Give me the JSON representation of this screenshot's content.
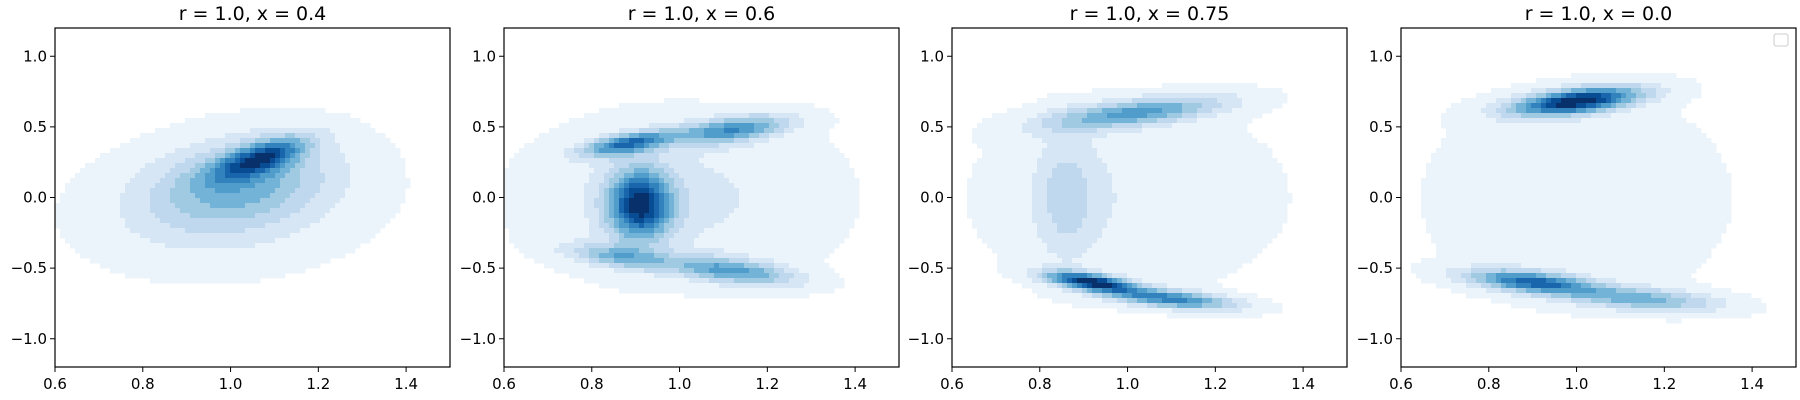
{
  "chart_data": [
    {
      "type": "heatmap",
      "subtype": "kde-contour",
      "title": "r = 1.0, x = 0.4",
      "xlabel": "",
      "ylabel": "",
      "xlim": [
        0.6,
        1.5
      ],
      "ylim": [
        -1.2,
        1.2
      ],
      "xticks": [
        "0.6",
        "0.8",
        "1.0",
        "1.2",
        "1.4"
      ],
      "yticks": [
        "−1.0",
        "−0.5",
        "0.0",
        "0.5",
        "1.0"
      ],
      "xtick_values": [
        0.6,
        0.8,
        1.0,
        1.2,
        1.4
      ],
      "ytick_values": [
        -1.0,
        -0.5,
        0.0,
        0.5,
        1.0
      ],
      "colormap": "Blues",
      "levels": 10,
      "grid": false,
      "legend": false,
      "density_components": [
        {
          "x": 1.07,
          "y": 0.28,
          "sx": 0.07,
          "sy": 0.1,
          "rho": 0.65,
          "w": 1.0
        },
        {
          "x": 1.02,
          "y": 0.1,
          "sx": 0.14,
          "sy": 0.22,
          "rho": 0.3,
          "w": 0.55
        },
        {
          "x": 1.0,
          "y": -0.05,
          "sx": 0.22,
          "sy": 0.32,
          "rho": 0.15,
          "w": 0.25
        }
      ]
    },
    {
      "type": "heatmap",
      "subtype": "kde-contour",
      "title": "r = 1.0, x = 0.6",
      "xlabel": "",
      "ylabel": "",
      "xlim": [
        0.6,
        1.5
      ],
      "ylim": [
        -1.2,
        1.2
      ],
      "xticks": [
        "0.6",
        "0.8",
        "1.0",
        "1.2",
        "1.4"
      ],
      "yticks": [
        "−1.0",
        "−0.5",
        "0.0",
        "0.5",
        "1.0"
      ],
      "xtick_values": [
        0.6,
        0.8,
        1.0,
        1.2,
        1.4
      ],
      "ytick_values": [
        -1.0,
        -0.5,
        0.0,
        0.5,
        1.0
      ],
      "colormap": "Blues",
      "levels": 10,
      "grid": false,
      "legend": false,
      "density_components": [
        {
          "x": 0.91,
          "y": -0.05,
          "sx": 0.05,
          "sy": 0.17,
          "rho": 0.0,
          "w": 1.0
        },
        {
          "x": 0.88,
          "y": 0.38,
          "sx": 0.07,
          "sy": 0.06,
          "rho": 0.6,
          "w": 0.75
        },
        {
          "x": 1.12,
          "y": 0.48,
          "sx": 0.09,
          "sy": 0.07,
          "rho": 0.5,
          "w": 0.65
        },
        {
          "x": 1.12,
          "y": -0.52,
          "sx": 0.1,
          "sy": 0.07,
          "rho": -0.5,
          "w": 0.6
        },
        {
          "x": 0.86,
          "y": -0.42,
          "sx": 0.08,
          "sy": 0.06,
          "rho": -0.5,
          "w": 0.45
        },
        {
          "x": 1.0,
          "y": 0.0,
          "sx": 0.24,
          "sy": 0.4,
          "rho": 0.0,
          "w": 0.18
        }
      ]
    },
    {
      "type": "heatmap",
      "subtype": "kde-contour",
      "title": "r = 1.0, x = 0.75",
      "xlabel": "",
      "ylabel": "",
      "xlim": [
        0.6,
        1.5
      ],
      "ylim": [
        -1.2,
        1.2
      ],
      "xticks": [
        "0.6",
        "0.8",
        "1.0",
        "1.2",
        "1.4"
      ],
      "yticks": [
        "−1.0",
        "−0.5",
        "0.0",
        "0.5",
        "1.0"
      ],
      "xtick_values": [
        0.6,
        0.8,
        1.0,
        1.2,
        1.4
      ],
      "ytick_values": [
        -1.0,
        -0.5,
        0.0,
        0.5,
        1.0
      ],
      "colormap": "Blues",
      "levels": 10,
      "grid": false,
      "legend": false,
      "density_components": [
        {
          "x": 0.92,
          "y": -0.6,
          "sx": 0.07,
          "sy": 0.05,
          "rho": -0.6,
          "w": 1.0
        },
        {
          "x": 1.1,
          "y": -0.72,
          "sx": 0.1,
          "sy": 0.05,
          "rho": -0.5,
          "w": 0.65
        },
        {
          "x": 1.02,
          "y": 0.6,
          "sx": 0.14,
          "sy": 0.08,
          "rho": 0.6,
          "w": 0.55
        },
        {
          "x": 0.86,
          "y": 0.0,
          "sx": 0.05,
          "sy": 0.3,
          "rho": 0.0,
          "w": 0.22
        },
        {
          "x": 1.0,
          "y": 0.0,
          "sx": 0.24,
          "sy": 0.45,
          "rho": 0.0,
          "w": 0.12
        }
      ]
    },
    {
      "type": "heatmap",
      "subtype": "kde-contour",
      "title": "r = 1.0, x = 0.0",
      "xlabel": "",
      "ylabel": "",
      "xlim": [
        0.6,
        1.5
      ],
      "ylim": [
        -1.2,
        1.2
      ],
      "xticks": [
        "0.6",
        "0.8",
        "1.0",
        "1.2",
        "1.4"
      ],
      "yticks": [
        "−1.0",
        "−0.5",
        "0.0",
        "0.5",
        "1.0"
      ],
      "xtick_values": [
        0.6,
        0.8,
        1.0,
        1.2,
        1.4
      ],
      "ytick_values": [
        -1.0,
        -0.5,
        0.0,
        0.5,
        1.0
      ],
      "colormap": "Blues",
      "levels": 10,
      "grid": false,
      "legend": true,
      "legend_placement": "top-right",
      "legend_entries": [],
      "density_components": [
        {
          "x": 1.0,
          "y": 0.68,
          "sx": 0.1,
          "sy": 0.07,
          "rho": 0.5,
          "w": 1.0
        },
        {
          "x": 0.9,
          "y": -0.6,
          "sx": 0.1,
          "sy": 0.06,
          "rho": -0.5,
          "w": 0.75
        },
        {
          "x": 1.15,
          "y": -0.72,
          "sx": 0.12,
          "sy": 0.06,
          "rho": -0.4,
          "w": 0.45
        },
        {
          "x": 1.0,
          "y": 0.0,
          "sx": 0.25,
          "sy": 0.55,
          "rho": 0.0,
          "w": 0.1
        }
      ]
    }
  ]
}
